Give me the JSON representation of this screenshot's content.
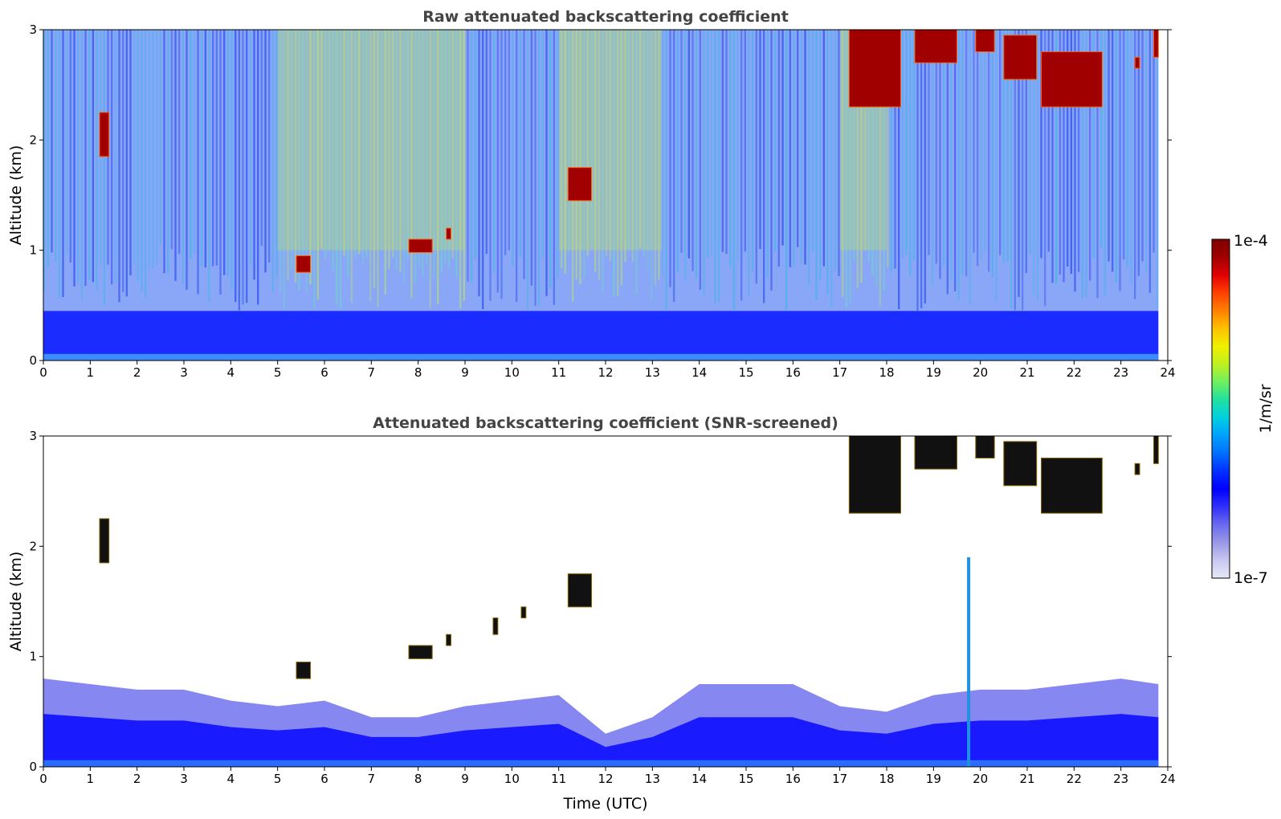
{
  "chart_data": [
    {
      "type": "heatmap",
      "title": "Raw attenuated backscattering coefficient",
      "xlabel": "",
      "ylabel": "Altitude (km)",
      "xlim": [
        0,
        24
      ],
      "ylim": [
        0,
        3
      ],
      "xticks": [
        "0",
        "1",
        "2",
        "3",
        "4",
        "5",
        "6",
        "7",
        "8",
        "9",
        "10",
        "11",
        "12",
        "13",
        "14",
        "15",
        "16",
        "17",
        "18",
        "19",
        "20",
        "21",
        "22",
        "23",
        "24"
      ],
      "yticks": [
        "0",
        "1",
        "2",
        "3"
      ],
      "data_extent_x": [
        0,
        23.8
      ],
      "features": {
        "surface_layer": {
          "top_km": 0.45,
          "value": "high density blue (~1e-6)"
        },
        "noisy_background": {
          "range_km": [
            0.45,
            3.0
          ],
          "value": "speckled blue/cyan (~1e-6 to 1e-5)"
        },
        "sunlight_noise_bands": [
          [
            5.0,
            9.0
          ],
          [
            11.0,
            13.2
          ],
          [
            17.0,
            18.0
          ]
        ],
        "cloud_patches": [
          {
            "t": [
              1.2,
              1.4
            ],
            "z": [
              1.85,
              2.25
            ]
          },
          {
            "t": [
              5.4,
              5.7
            ],
            "z": [
              0.8,
              0.95
            ]
          },
          {
            "t": [
              7.8,
              8.3
            ],
            "z": [
              0.98,
              1.1
            ]
          },
          {
            "t": [
              8.6,
              8.7
            ],
            "z": [
              1.1,
              1.2
            ]
          },
          {
            "t": [
              11.2,
              11.7
            ],
            "z": [
              1.45,
              1.75
            ]
          },
          {
            "t": [
              17.2,
              18.3
            ],
            "z": [
              2.3,
              3.0
            ]
          },
          {
            "t": [
              18.6,
              19.5
            ],
            "z": [
              2.7,
              3.0
            ]
          },
          {
            "t": [
              19.9,
              20.3
            ],
            "z": [
              2.8,
              3.0
            ]
          },
          {
            "t": [
              20.5,
              21.2
            ],
            "z": [
              2.55,
              2.95
            ]
          },
          {
            "t": [
              21.3,
              22.6
            ],
            "z": [
              2.3,
              2.8
            ]
          },
          {
            "t": [
              23.3,
              23.4
            ],
            "z": [
              2.65,
              2.75
            ]
          },
          {
            "t": [
              23.7,
              23.8
            ],
            "z": [
              2.75,
              3.0
            ]
          }
        ]
      }
    },
    {
      "type": "heatmap",
      "title": "Attenuated backscattering coefficient (SNR-screened)",
      "xlabel": "Time (UTC)",
      "ylabel": "Altitude (km)",
      "xlim": [
        0,
        24
      ],
      "ylim": [
        0,
        3
      ],
      "xticks": [
        "0",
        "1",
        "2",
        "3",
        "4",
        "5",
        "6",
        "7",
        "8",
        "9",
        "10",
        "11",
        "12",
        "13",
        "14",
        "15",
        "16",
        "17",
        "18",
        "19",
        "20",
        "21",
        "22",
        "23",
        "24"
      ],
      "yticks": [
        "0",
        "1",
        "2",
        "3"
      ],
      "data_extent_x": [
        0,
        23.8
      ],
      "boundary_layer_top_km": [
        [
          0,
          0.8
        ],
        [
          1,
          0.75
        ],
        [
          2,
          0.7
        ],
        [
          3,
          0.7
        ],
        [
          4,
          0.6
        ],
        [
          5,
          0.55
        ],
        [
          6,
          0.6
        ],
        [
          7,
          0.45
        ],
        [
          8,
          0.45
        ],
        [
          9,
          0.55
        ],
        [
          10,
          0.6
        ],
        [
          11,
          0.65
        ],
        [
          12,
          0.3
        ],
        [
          13,
          0.45
        ],
        [
          14,
          0.75
        ],
        [
          15,
          0.75
        ],
        [
          16,
          0.75
        ],
        [
          17,
          0.55
        ],
        [
          18,
          0.5
        ],
        [
          19,
          0.65
        ],
        [
          20,
          0.7
        ],
        [
          21,
          0.7
        ],
        [
          22,
          0.75
        ],
        [
          23,
          0.8
        ],
        [
          23.8,
          0.75
        ]
      ],
      "plume": {
        "t": 19.75,
        "z": [
          0.0,
          1.9
        ]
      },
      "cloud_patches": [
        {
          "t": [
            1.2,
            1.4
          ],
          "z": [
            1.85,
            2.25
          ]
        },
        {
          "t": [
            5.4,
            5.7
          ],
          "z": [
            0.8,
            0.95
          ]
        },
        {
          "t": [
            7.8,
            8.3
          ],
          "z": [
            0.98,
            1.1
          ]
        },
        {
          "t": [
            8.6,
            8.7
          ],
          "z": [
            1.1,
            1.2
          ]
        },
        {
          "t": [
            9.6,
            9.7
          ],
          "z": [
            1.2,
            1.35
          ]
        },
        {
          "t": [
            10.2,
            10.3
          ],
          "z": [
            1.35,
            1.45
          ]
        },
        {
          "t": [
            11.2,
            11.7
          ],
          "z": [
            1.45,
            1.75
          ]
        },
        {
          "t": [
            17.2,
            18.3
          ],
          "z": [
            2.3,
            3.0
          ]
        },
        {
          "t": [
            18.6,
            19.5
          ],
          "z": [
            2.7,
            3.0
          ]
        },
        {
          "t": [
            19.9,
            20.3
          ],
          "z": [
            2.8,
            3.0
          ]
        },
        {
          "t": [
            20.5,
            21.2
          ],
          "z": [
            2.55,
            2.95
          ]
        },
        {
          "t": [
            21.3,
            22.6
          ],
          "z": [
            2.3,
            2.8
          ]
        },
        {
          "t": [
            23.3,
            23.4
          ],
          "z": [
            2.65,
            2.75
          ]
        },
        {
          "t": [
            23.7,
            23.8
          ],
          "z": [
            2.75,
            3.0
          ]
        }
      ]
    }
  ],
  "colorbar": {
    "label": "1/m/sr",
    "max_label": "1e-4",
    "min_label": "1e-7",
    "scale": "log",
    "range": [
      1e-07,
      0.0001
    ],
    "colors": [
      "#e8e8f8",
      "#c8c8f0",
      "#9898e8",
      "#6a6af0",
      "#3030f8",
      "#0000ff",
      "#0030ff",
      "#0070ff",
      "#00a0ff",
      "#00d0e0",
      "#20e0a0",
      "#70f060",
      "#c0f020",
      "#f0f000",
      "#ffc000",
      "#ff8000",
      "#ff4000",
      "#e00000",
      "#a00000",
      "#800000"
    ]
  }
}
